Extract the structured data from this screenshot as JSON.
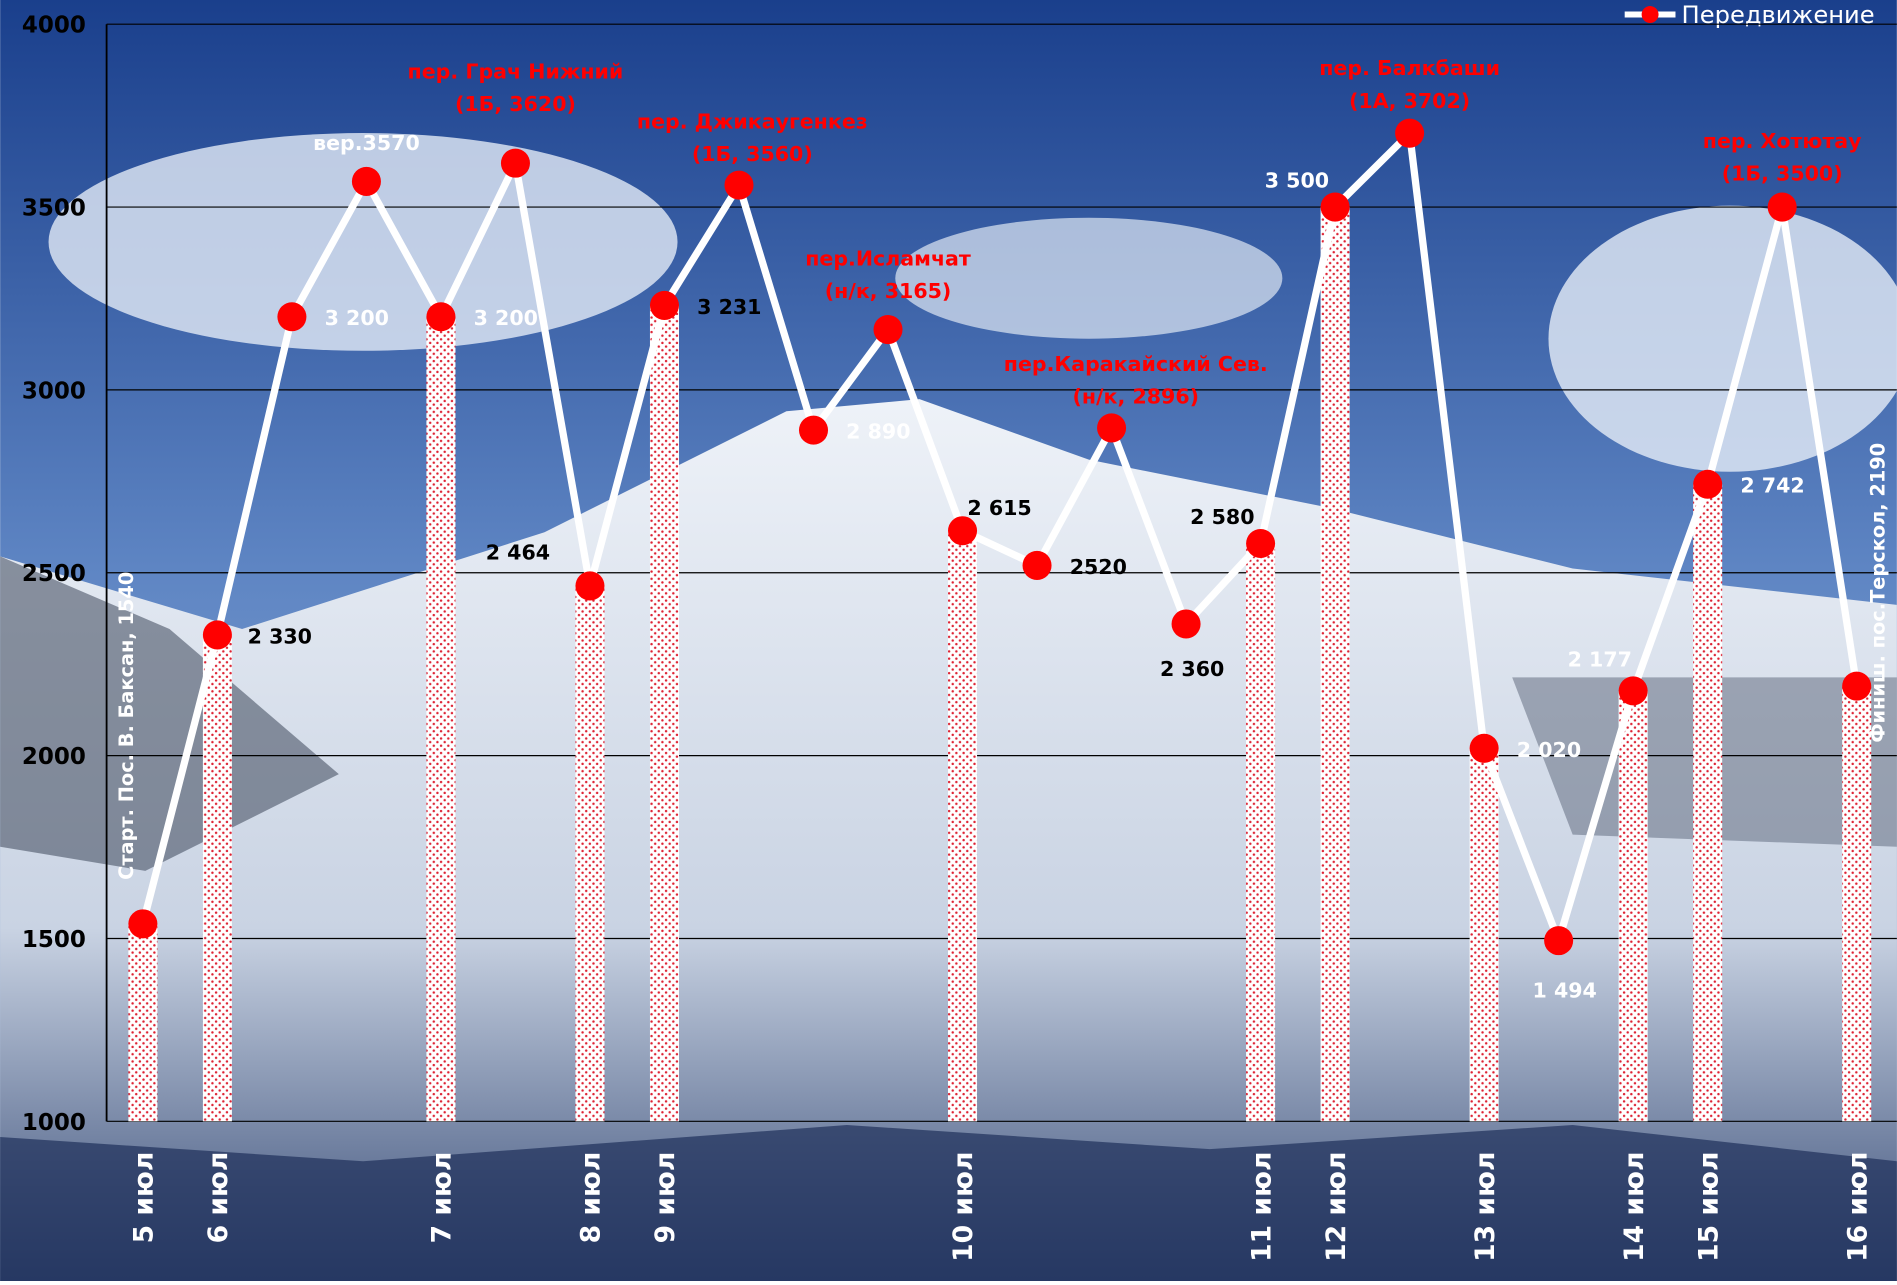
{
  "chart_data": {
    "type": "line",
    "categories": [
      "5 июл",
      "6 июл",
      null,
      null,
      "7 июл",
      null,
      "8 июл",
      "9 июл",
      null,
      null,
      null,
      "10 июл",
      null,
      null,
      null,
      "11 июл",
      "12 июл",
      null,
      "13 июл",
      null,
      "14 июл",
      "15 июл",
      null,
      "16 июл"
    ],
    "series": [
      {
        "name": "Передвижение",
        "color": "#ff0000",
        "line_color": "#ffffff",
        "values": [
          1540,
          2330,
          3200,
          3570,
          3200,
          3620,
          2464,
          3231,
          3560,
          2890,
          3165,
          2615,
          2520,
          2896,
          2360,
          2580,
          3500,
          3702,
          2020,
          1494,
          2177,
          2742,
          3500,
          2190
        ],
        "value_labels": [
          [
            "Старт. Пос. В. Баксан, 1540"
          ],
          [
            "2 330"
          ],
          [
            "3 200"
          ],
          [
            "вер.3570"
          ],
          [
            "3 200"
          ],
          [
            "пер. Грач Нижний",
            "(1Б, 3620)"
          ],
          [
            "2 464"
          ],
          [
            "3 231"
          ],
          [
            "пер. Джикаугенкез",
            "(1Б, 3560)"
          ],
          [
            "2 890"
          ],
          [
            "пер.Исламчат",
            "(н/к, 3165)"
          ],
          [
            "2 615"
          ],
          [
            "2520"
          ],
          [
            "пер.Каракайский Сев.",
            "(н/к, 2896)"
          ],
          [
            "2 360"
          ],
          [
            "2 580"
          ],
          [
            "3 500"
          ],
          [
            "пер. Балкбаши",
            "(1А, 3702)"
          ],
          [
            "2 020"
          ],
          [
            "1 494"
          ],
          [
            "2 177"
          ],
          [
            "2 742"
          ],
          [
            "пер. Хотютау",
            "(1Б, 3500)"
          ],
          [
            "Финиш. пос.Терскол, 2190"
          ]
        ],
        "value_label_colors": [
          "#ffffff",
          "#000000",
          "#ffffff",
          "#ffffff",
          "#ffffff",
          "#ff0000",
          "#000000",
          "#000000",
          "#ff0000",
          "#ffffff",
          "#ff0000",
          "#000000",
          "#000000",
          "#ff0000",
          "#000000",
          "#000000",
          "#ffffff",
          "#ff0000",
          "#ffffff",
          "#ffffff",
          "#ffffff",
          "#ffffff",
          "#ff0000",
          "#ffffff"
        ]
      }
    ],
    "ylim": [
      1000,
      4000
    ],
    "yticks": [
      1000,
      1500,
      2000,
      2500,
      3000,
      3500,
      4000
    ],
    "grid": true,
    "legend": "top-right"
  }
}
